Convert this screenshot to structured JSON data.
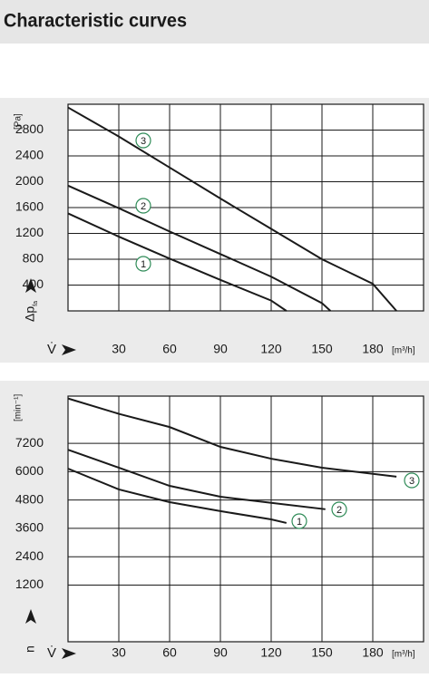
{
  "header": {
    "title": "Characteristic curves"
  },
  "chart_data": [
    {
      "type": "line",
      "xlabel": "V̇",
      "xunit": "[m³/h]",
      "ylabel": "Δp",
      "ylabel_sub": "fa",
      "yunit": "[Pa]",
      "xlim": [
        0,
        210
      ],
      "xticks": [
        30,
        60,
        90,
        120,
        150,
        180
      ],
      "ylim": [
        0,
        3200
      ],
      "yticks": [
        400,
        800,
        1200,
        1600,
        2000,
        2400,
        2800
      ],
      "grid": true,
      "series": [
        {
          "name": "1",
          "color": "#1a1a1a",
          "x": [
            0,
            30,
            60,
            90,
            120,
            129
          ],
          "values": [
            1510,
            1150,
            810,
            480,
            160,
            0
          ]
        },
        {
          "name": "2",
          "color": "#1a1a1a",
          "x": [
            0,
            30,
            60,
            90,
            120,
            150,
            155
          ],
          "values": [
            1940,
            1590,
            1230,
            880,
            530,
            120,
            0
          ]
        },
        {
          "name": "3",
          "color": "#1a1a1a",
          "x": [
            0,
            30,
            60,
            90,
            120,
            150,
            180,
            194
          ],
          "values": [
            3150,
            2700,
            2220,
            1740,
            1270,
            800,
            420,
            0
          ]
        }
      ]
    },
    {
      "type": "line",
      "xlabel": "V̇",
      "xunit": "[m³/h]",
      "ylabel": "n",
      "yunit": "[min⁻¹]",
      "xlim": [
        0,
        210
      ],
      "xticks": [
        30,
        60,
        90,
        120,
        150,
        180
      ],
      "ylim": [
        -1200,
        9200
      ],
      "yticks": [
        1200,
        2400,
        3600,
        4800,
        6000,
        7200
      ],
      "grid": true,
      "series": [
        {
          "name": "1",
          "color": "#1a1a1a",
          "x": [
            0,
            30,
            60,
            90,
            120,
            129
          ],
          "values": [
            6130,
            5250,
            4710,
            4330,
            3980,
            3830
          ]
        },
        {
          "name": "2",
          "color": "#1a1a1a",
          "x": [
            0,
            30,
            60,
            90,
            120,
            152
          ],
          "values": [
            6930,
            6170,
            5400,
            4940,
            4680,
            4410
          ]
        },
        {
          "name": "3",
          "color": "#1a1a1a",
          "x": [
            0,
            30,
            60,
            90,
            120,
            150,
            194
          ],
          "values": [
            9100,
            8450,
            7890,
            7050,
            6550,
            6170,
            5790
          ]
        }
      ]
    }
  ]
}
